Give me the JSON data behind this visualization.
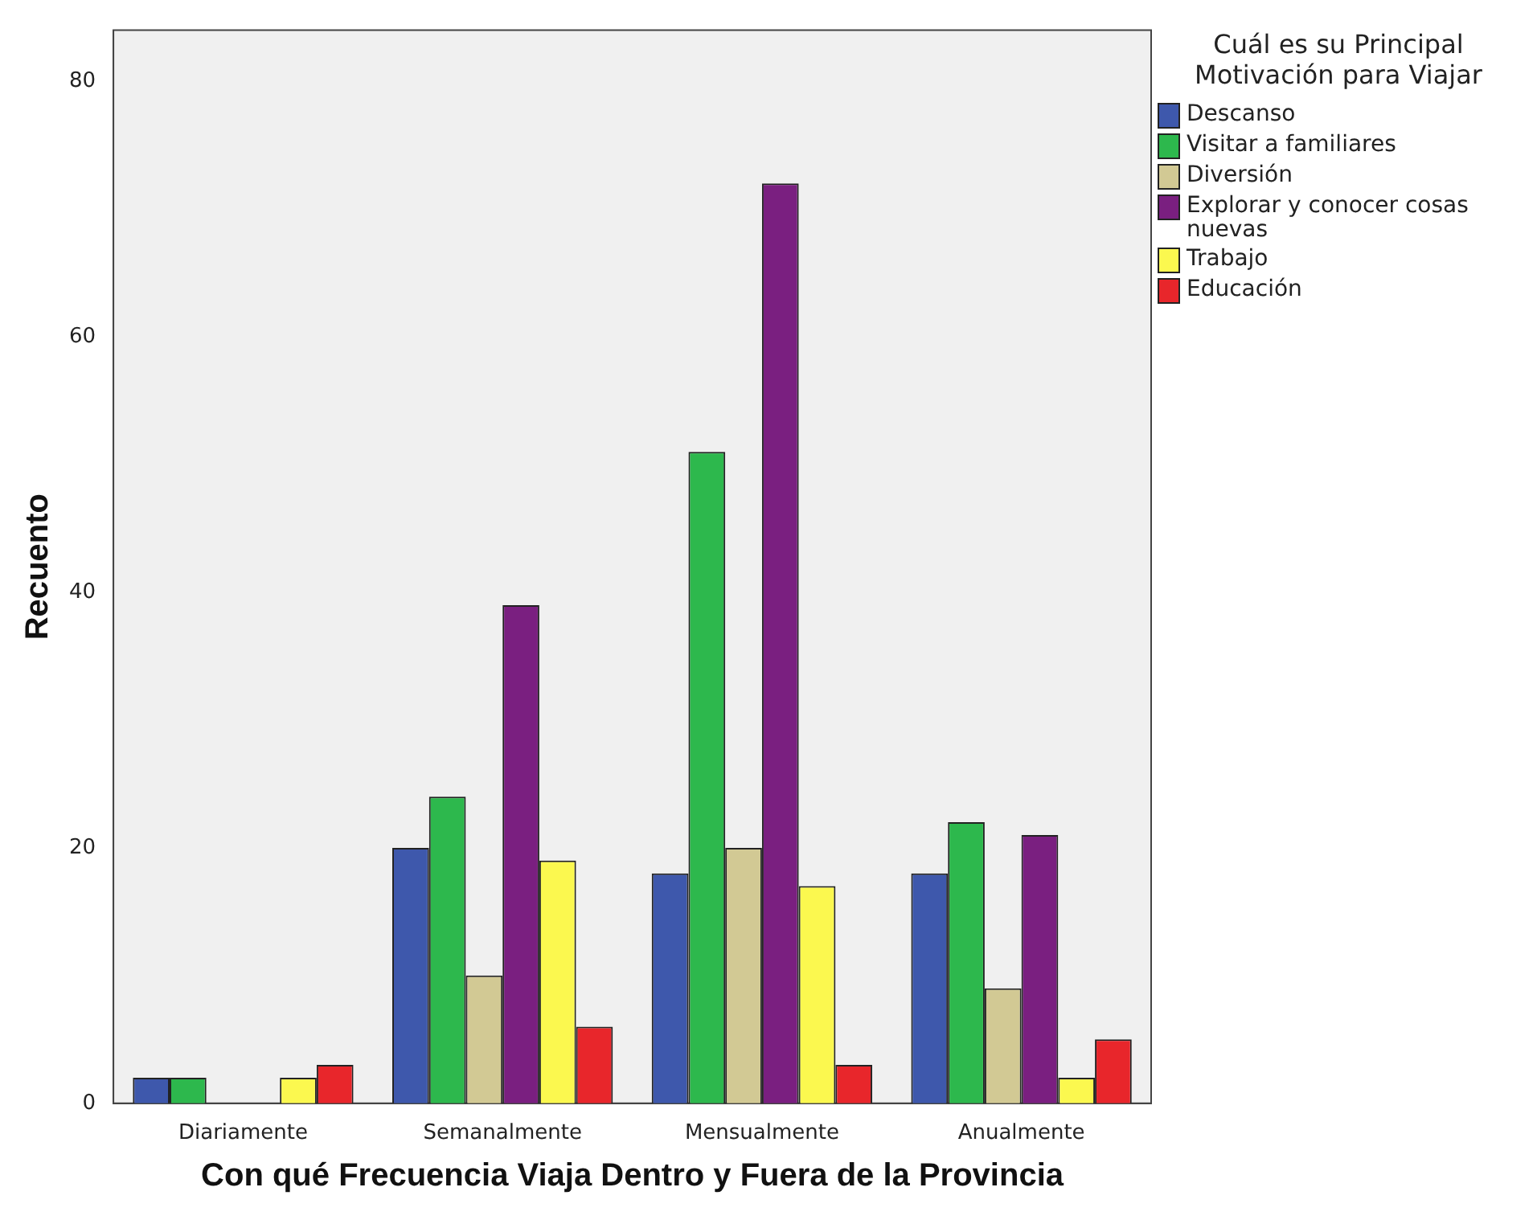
{
  "chart_data": {
    "type": "bar",
    "xlabel": "Con qué Frecuencia Viaja Dentro y Fuera de la Provincia",
    "ylabel": "Recuento",
    "legend_title": "Cuál es su Principal Motivación para Viajar",
    "categories": [
      "Diariamente",
      "Semanalmente",
      "Mensualmente",
      "Anualmente"
    ],
    "series": [
      {
        "name": "Descanso",
        "color": "#3e58ac",
        "values": [
          2,
          20,
          18,
          18
        ]
      },
      {
        "name": "Visitar a familiares",
        "color": "#2db84d",
        "values": [
          2,
          24,
          51,
          22
        ]
      },
      {
        "name": "Diversión",
        "color": "#d2c994",
        "values": [
          null,
          10,
          20,
          9
        ]
      },
      {
        "name": "Explorar y conocer cosas nuevas",
        "color": "#7a1f80",
        "values": [
          null,
          39,
          72,
          21
        ]
      },
      {
        "name": "Trabajo",
        "color": "#fbf84f",
        "values": [
          2,
          19,
          17,
          2
        ]
      },
      {
        "name": "Educación",
        "color": "#e8262b",
        "values": [
          3,
          6,
          3,
          5
        ]
      }
    ],
    "ylim": [
      0,
      84
    ],
    "yticks": [
      0,
      20,
      40,
      60,
      80
    ],
    "grid": false,
    "legend": "right"
  }
}
